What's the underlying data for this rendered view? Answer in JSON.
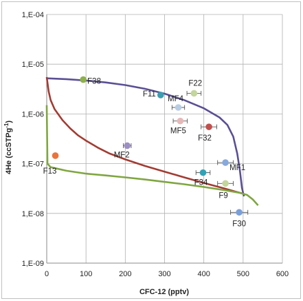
{
  "chart_data": {
    "type": "scatter",
    "xlabel": "CFC-12 (pptv)",
    "ylabel_main": "4He (ccSTPg",
    "ylabel_sup": "-1",
    "ylabel_close": ")",
    "xlim": [
      0,
      600
    ],
    "ylim": [
      1e-09,
      0.0001
    ],
    "yscale": "log",
    "grid": true,
    "x_ticks": [
      "0",
      "100",
      "200",
      "300",
      "400",
      "500",
      "600"
    ],
    "x_tick_values": [
      0,
      100,
      200,
      300,
      400,
      500,
      600
    ],
    "y_ticks": [
      "1,E-04",
      "1,E-05",
      "1,E-06",
      "1,E-07",
      "1,E-08",
      "1,E-09"
    ],
    "y_tick_values": [
      0.0001,
      1e-05,
      1e-06,
      1e-07,
      1e-08,
      1e-09
    ],
    "points": [
      {
        "label": "F38",
        "x": 93,
        "y": 4.9e-06,
        "color": "#8db04a",
        "xerr": 0
      },
      {
        "label": "F11",
        "x": 290,
        "y": 2.4e-06,
        "color": "#3a9fb0",
        "xerr": 0
      },
      {
        "label": "F22",
        "x": 375,
        "y": 2.6e-06,
        "color": "#c3d69b",
        "xerr": 18
      },
      {
        "label": "MF4",
        "x": 335,
        "y": 1.35e-06,
        "color": "#b8cce4",
        "xerr": 16
      },
      {
        "label": "MF5",
        "x": 340,
        "y": 7.2e-07,
        "color": "#e6b9b8",
        "xerr": 18
      },
      {
        "label": "F32",
        "x": 413,
        "y": 5.5e-07,
        "color": "#c0504d",
        "xerr": 20
      },
      {
        "label": "MF2",
        "x": 205,
        "y": 2.3e-07,
        "color": "#9c8fc4",
        "xerr": 10
      },
      {
        "label": "F13",
        "x": 22,
        "y": 1.45e-07,
        "color": "#e8743b",
        "xerr": 0
      },
      {
        "label": "MF1",
        "x": 455,
        "y": 1.05e-07,
        "color": "#87a9db",
        "xerr": 20
      },
      {
        "label": "F34",
        "x": 398,
        "y": 6.6e-08,
        "color": "#31a3b6",
        "xerr": 18
      },
      {
        "label": "F9",
        "x": 455,
        "y": 4e-08,
        "color": "#c3d69b",
        "xerr": 20
      },
      {
        "label": "F30",
        "x": 490,
        "y": 1.05e-08,
        "color": "#7aa0d8",
        "xerr": 22
      }
    ],
    "curves": [
      {
        "color": "#5b4f94",
        "points": [
          [
            0,
            5.2e-06
          ],
          [
            50,
            5e-06
          ],
          [
            100,
            4.7e-06
          ],
          [
            150,
            4.3e-06
          ],
          [
            200,
            3.8e-06
          ],
          [
            250,
            3.2e-06
          ],
          [
            300,
            2.55e-06
          ],
          [
            350,
            1.9e-06
          ],
          [
            400,
            1.3e-06
          ],
          [
            440,
            8.5e-07
          ],
          [
            460,
            6e-07
          ],
          [
            475,
            3.5e-07
          ],
          [
            485,
            1.6e-07
          ],
          [
            492,
            7e-08
          ],
          [
            497,
            3.3e-08
          ],
          [
            502,
            2.2e-08
          ]
        ]
      },
      {
        "color": "#a23c32",
        "points": [
          [
            0,
            5.5e-06
          ],
          [
            5,
            2.8e-06
          ],
          [
            10,
            1.9e-06
          ],
          [
            20,
            1.25e-06
          ],
          [
            40,
            7.5e-07
          ],
          [
            60,
            5.1e-07
          ],
          [
            80,
            3.7e-07
          ],
          [
            100,
            2.9e-07
          ],
          [
            130,
            2.1e-07
          ],
          [
            160,
            1.6e-07
          ],
          [
            200,
            1.22e-07
          ],
          [
            250,
            9e-08
          ],
          [
            300,
            6.9e-08
          ],
          [
            350,
            5.3e-08
          ],
          [
            400,
            4.1e-08
          ],
          [
            450,
            3.2e-08
          ],
          [
            480,
            2.75e-08
          ],
          [
            500,
            2.5e-08
          ]
        ]
      },
      {
        "color": "#7fa640",
        "points": [
          [
            0,
            1.5e-06
          ],
          [
            2,
            1e-07
          ],
          [
            10,
            8.5e-08
          ],
          [
            50,
            7.2e-08
          ],
          [
            100,
            6.3e-08
          ],
          [
            150,
            5.8e-08
          ],
          [
            200,
            5.3e-08
          ],
          [
            250,
            4.8e-08
          ],
          [
            300,
            4.3e-08
          ],
          [
            350,
            3.85e-08
          ],
          [
            400,
            3.4e-08
          ],
          [
            450,
            2.95e-08
          ],
          [
            490,
            2.6e-08
          ],
          [
            510,
            2.35e-08
          ],
          [
            525,
            1.9e-08
          ],
          [
            538,
            1.45e-08
          ]
        ]
      }
    ]
  }
}
